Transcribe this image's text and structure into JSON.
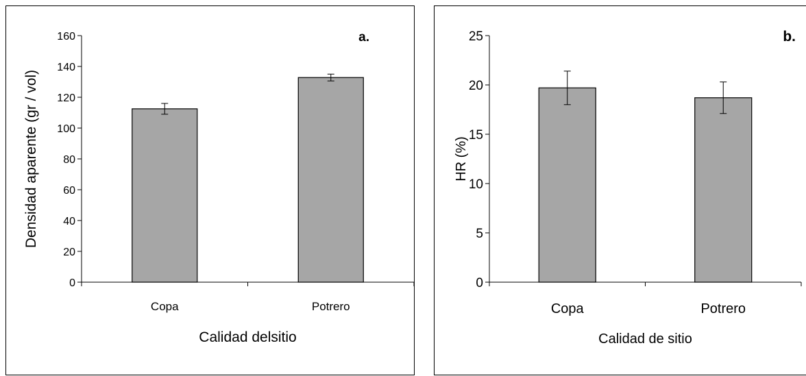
{
  "chart_data": [
    {
      "type": "bar",
      "categories": [
        "Copa",
        "Potrero"
      ],
      "values": [
        112.5,
        132.8
      ],
      "errors": [
        3.5,
        2.2
      ],
      "panel_label": "a.",
      "xlabel": "Calidad delsitio",
      "ylabel": "Densidad aparente (gr / vol)",
      "ylim": [
        0,
        160
      ],
      "yticks": [
        0,
        20,
        40,
        60,
        80,
        100,
        120,
        140,
        160
      ],
      "grid": false,
      "bar_color": "#a6a6a6"
    },
    {
      "type": "bar",
      "categories": [
        "Copa",
        "Potrero"
      ],
      "values": [
        19.7,
        18.7
      ],
      "errors": [
        1.7,
        1.6
      ],
      "panel_label": "b.",
      "xlabel": "Calidad de sitio",
      "ylabel": "HR (%)",
      "ylim": [
        0,
        25
      ],
      "yticks": [
        0,
        5,
        10,
        15,
        20,
        25
      ],
      "grid": false,
      "bar_color": "#a6a6a6"
    }
  ]
}
